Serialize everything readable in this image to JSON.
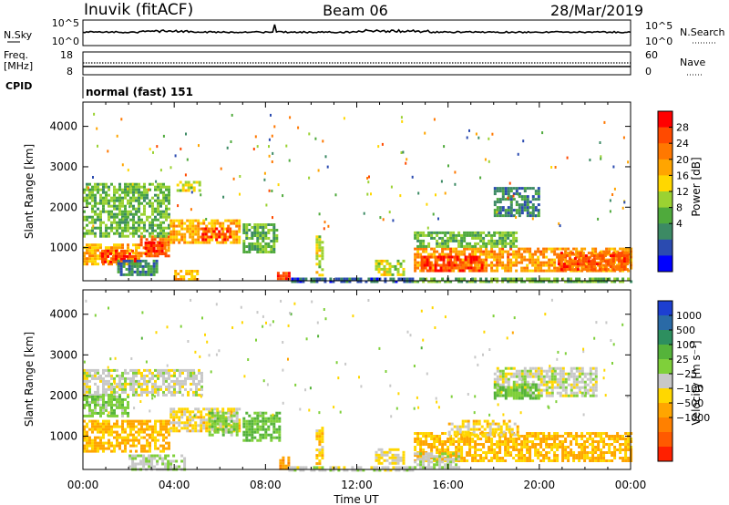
{
  "header": {
    "station": "Inuvik (fitACF)",
    "beam": "Beam 06",
    "date": "28/Mar/2019"
  },
  "noise_panel": {
    "left_label": "N.Sky",
    "left_ticks": [
      "10^5",
      "10^0"
    ],
    "right_ticks": [
      "10^5",
      "10^0"
    ],
    "right_label": "N.Search"
  },
  "freq_panel": {
    "left_label_line1": "Freq.",
    "left_label_line2": "[MHz]",
    "left_ticks": [
      "18",
      "8"
    ],
    "right_ticks": [
      "60",
      "0"
    ],
    "right_label": "Nave"
  },
  "cpid": {
    "label": "CPID",
    "value": "normal (fast) 151"
  },
  "power_colorbar": {
    "label": "Power [dB]",
    "ticks": [
      "28",
      "24",
      "20",
      "16",
      "12",
      "8",
      "4"
    ],
    "colors": [
      "#0000ff",
      "#2b4bb0",
      "#3c8a64",
      "#4faa3c",
      "#9bd232",
      "#ffd700",
      "#ffa500",
      "#ff7800",
      "#ff4a00",
      "#ff0000"
    ]
  },
  "velocity_colorbar": {
    "label": "Velocity [m s⁻¹]",
    "ticks": [
      "1000",
      "500",
      "100",
      "25",
      "−25",
      "−100",
      "−500",
      "−1000"
    ],
    "colors": [
      "#1d3fd1",
      "#2a6aa6",
      "#2d8f5f",
      "#55b33a",
      "#7fd03a",
      "#c8c8c8",
      "#ffd700",
      "#ffa500",
      "#ff8000",
      "#ff5a00",
      "#ff2000"
    ]
  },
  "chart_data": [
    {
      "type": "heatmap",
      "id": "power",
      "ylabel": "Slant Range [km]",
      "xlabel": "Time UT",
      "x_ticks": [
        "00:00",
        "04:00",
        "08:00",
        "12:00",
        "16:00",
        "20:00",
        "00:00"
      ],
      "y_ticks": [
        1000,
        2000,
        3000,
        4000
      ],
      "xlim": [
        0,
        24
      ],
      "ylim": [
        180,
        4600
      ],
      "cells": [
        {
          "t0": 0.0,
          "t1": 2.5,
          "r0": 600,
          "r1": 1100,
          "v": 20
        },
        {
          "t0": 0.8,
          "t1": 2.3,
          "r0": 650,
          "r1": 950,
          "v": 28
        },
        {
          "t0": 2.5,
          "t1": 3.8,
          "r0": 800,
          "r1": 1300,
          "v": 24
        },
        {
          "t0": 2.7,
          "t1": 3.6,
          "r0": 850,
          "r1": 1150,
          "v": 28
        },
        {
          "t0": 0.0,
          "t1": 3.8,
          "r0": 1300,
          "r1": 2600,
          "v": 12
        },
        {
          "t0": 3.8,
          "t1": 6.8,
          "r0": 1100,
          "r1": 1700,
          "v": 20
        },
        {
          "t0": 5.2,
          "t1": 6.5,
          "r0": 1200,
          "r1": 1500,
          "v": 28
        },
        {
          "t0": 4.1,
          "t1": 5.1,
          "r0": 2400,
          "r1": 2650,
          "v": 16
        },
        {
          "t0": 1.5,
          "t1": 3.2,
          "r0": 300,
          "r1": 700,
          "v": 8
        },
        {
          "t0": 4.0,
          "t1": 5.0,
          "r0": 200,
          "r1": 450,
          "v": 20
        },
        {
          "t0": 7.0,
          "t1": 8.5,
          "r0": 900,
          "r1": 1600,
          "v": 12
        },
        {
          "t0": 8.5,
          "t1": 9.0,
          "r0": 200,
          "r1": 400,
          "v": 28
        },
        {
          "t0": 10.2,
          "t1": 10.5,
          "r0": 300,
          "r1": 1300,
          "v": 16
        },
        {
          "t0": 9.0,
          "t1": 14.5,
          "r0": 190,
          "r1": 260,
          "v": 6
        },
        {
          "t0": 12.8,
          "t1": 14.0,
          "r0": 300,
          "r1": 700,
          "v": 16
        },
        {
          "t0": 14.5,
          "t1": 24.0,
          "r0": 400,
          "r1": 1000,
          "v": 22
        },
        {
          "t0": 14.8,
          "t1": 17.5,
          "r0": 450,
          "r1": 800,
          "v": 28
        },
        {
          "t0": 20.8,
          "t1": 23.8,
          "r0": 450,
          "r1": 900,
          "v": 26
        },
        {
          "t0": 14.5,
          "t1": 19.0,
          "r0": 1000,
          "r1": 1400,
          "v": 12
        },
        {
          "t0": 18.0,
          "t1": 20.0,
          "r0": 1800,
          "r1": 2500,
          "v": 8
        },
        {
          "t0": 14.5,
          "t1": 24.0,
          "r0": 190,
          "r1": 260,
          "v": 12
        }
      ]
    },
    {
      "type": "heatmap",
      "id": "velocity",
      "ylabel": "Slant Range [km]",
      "xlabel": "Time UT",
      "x_ticks": [
        "00:00",
        "04:00",
        "08:00",
        "12:00",
        "16:00",
        "20:00",
        "00:00"
      ],
      "y_ticks": [
        1000,
        2000,
        3000,
        4000
      ],
      "xlim": [
        0,
        24
      ],
      "ylim": [
        180,
        4600
      ],
      "cells": [
        {
          "t0": 0.0,
          "t1": 3.8,
          "r0": 600,
          "r1": 1400,
          "v": -300
        },
        {
          "t0": 3.8,
          "t1": 6.8,
          "r0": 1100,
          "r1": 1700,
          "v": -150
        },
        {
          "t0": 5.5,
          "t1": 6.8,
          "r0": 1000,
          "r1": 1600,
          "v": 150
        },
        {
          "t0": 0.0,
          "t1": 5.2,
          "r0": 2000,
          "r1": 2650,
          "v": 0
        },
        {
          "t0": 0.0,
          "t1": 2.0,
          "r0": 1500,
          "r1": 2000,
          "v": 200
        },
        {
          "t0": 2.0,
          "t1": 4.5,
          "r0": 200,
          "r1": 550,
          "v": 60
        },
        {
          "t0": 7.0,
          "t1": 8.6,
          "r0": 900,
          "r1": 1600,
          "v": 300
        },
        {
          "t0": 8.6,
          "t1": 9.0,
          "r0": 200,
          "r1": 500,
          "v": -400
        },
        {
          "t0": 10.2,
          "t1": 10.5,
          "r0": 300,
          "r1": 1300,
          "v": -200
        },
        {
          "t0": 9.0,
          "t1": 14.5,
          "r0": 190,
          "r1": 260,
          "v": 0
        },
        {
          "t0": 12.8,
          "t1": 14.0,
          "r0": 300,
          "r1": 700,
          "v": -100
        },
        {
          "t0": 14.5,
          "t1": 24.0,
          "r0": 400,
          "r1": 1100,
          "v": -300
        },
        {
          "t0": 14.5,
          "t1": 16.5,
          "r0": 200,
          "r1": 600,
          "v": 60
        },
        {
          "t0": 16.0,
          "t1": 19.0,
          "r0": 1000,
          "r1": 1400,
          "v": -150
        },
        {
          "t0": 18.0,
          "t1": 22.5,
          "r0": 2000,
          "r1": 2700,
          "v": 0
        },
        {
          "t0": 18.0,
          "t1": 20.0,
          "r0": 1900,
          "r1": 2300,
          "v": 300
        }
      ]
    }
  ]
}
